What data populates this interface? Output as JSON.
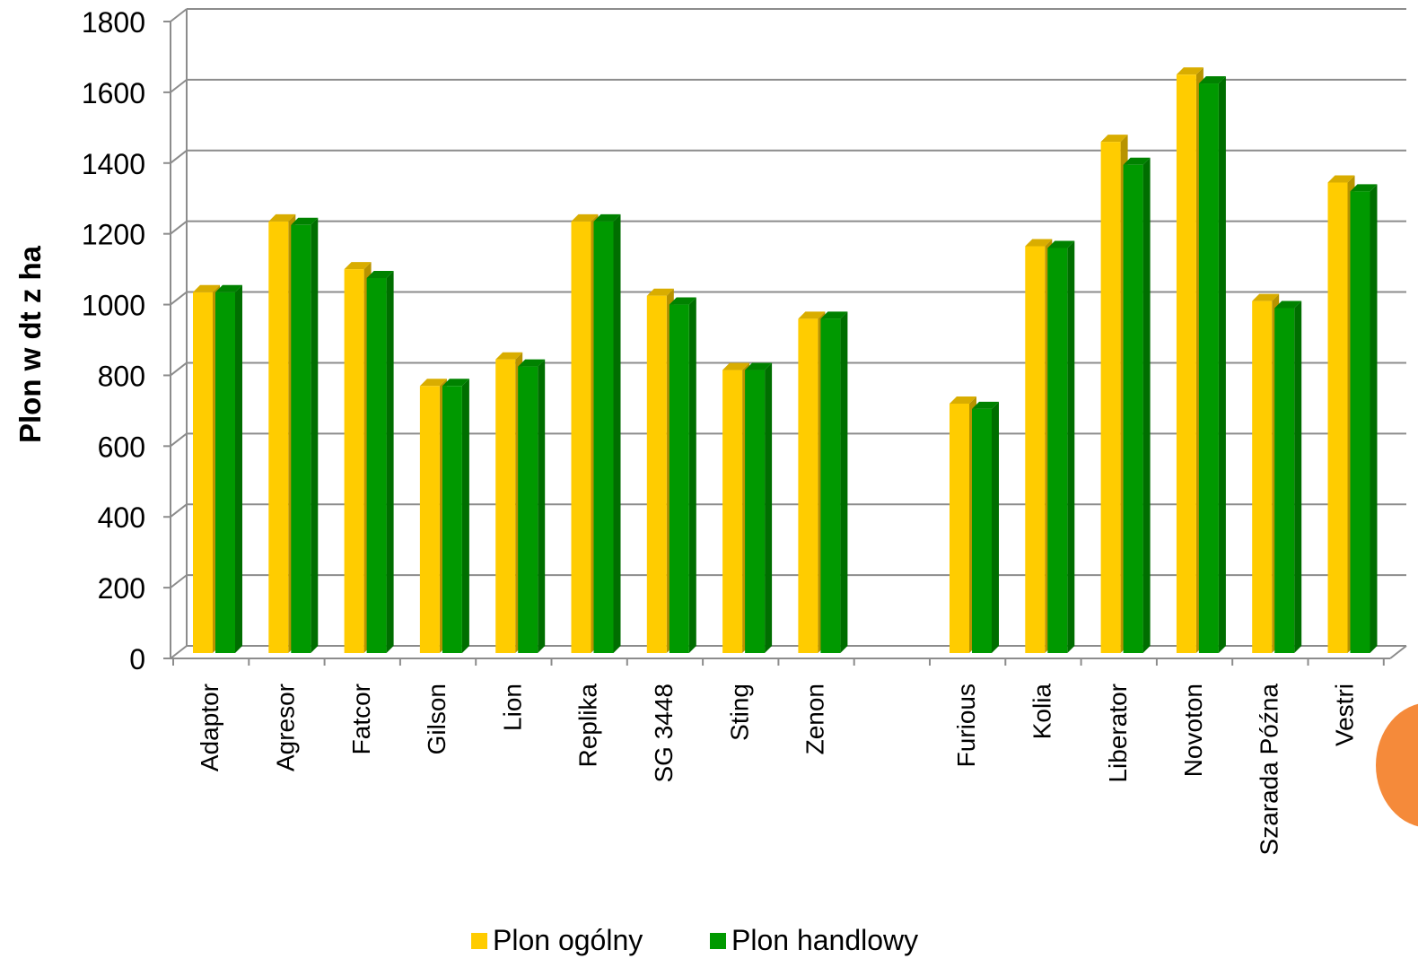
{
  "chart_data": {
    "type": "bar",
    "ylabel": "Plon w dt z ha",
    "xlabel": "",
    "ylim": [
      0,
      1800
    ],
    "yticks": [
      0,
      200,
      400,
      600,
      800,
      1000,
      1200,
      1400,
      1600,
      1800
    ],
    "grid": true,
    "legend_position": "bottom",
    "categories": [
      "Adaptor",
      "Agresor",
      "Fatcor",
      "Gilson",
      "Lion",
      "Replika",
      "SG 3448",
      "Sting",
      "Zenon",
      "",
      "Furious",
      "Kolia",
      "Liberator",
      "Novoton",
      "Szarada Późna",
      "Vestri"
    ],
    "series": [
      {
        "name": "Plon ogólny",
        "color": "#ffcc00",
        "values": [
          1035,
          1235,
          1100,
          770,
          845,
          1235,
          1025,
          815,
          960,
          null,
          720,
          1165,
          1460,
          1650,
          1010,
          1345
        ]
      },
      {
        "name": "Plon handlowy",
        "color": "#009900",
        "values": [
          1035,
          1225,
          1075,
          770,
          825,
          1235,
          1000,
          815,
          960,
          null,
          705,
          1160,
          1395,
          1625,
          990,
          1320
        ]
      }
    ]
  }
}
